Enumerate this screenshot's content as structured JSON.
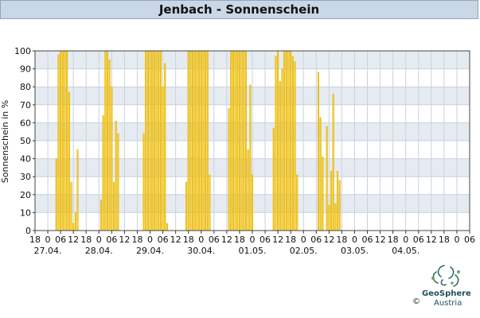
{
  "chart_data": {
    "type": "bar",
    "title": "Jenbach - Sonnenschein",
    "ylabel": "Sonnenschein in %",
    "ylim": [
      0,
      100
    ],
    "yticks": [
      0,
      10,
      20,
      30,
      40,
      50,
      60,
      70,
      80,
      90,
      100
    ],
    "x_hour_labels": [
      "18",
      "0",
      "06",
      "12",
      "18",
      "0",
      "06",
      "12",
      "18",
      "0",
      "06",
      "12",
      "18",
      "0",
      "06",
      "12",
      "18",
      "0",
      "06",
      "12",
      "18",
      "0",
      "06",
      "12",
      "18",
      "0",
      "06",
      "12",
      "18",
      "0",
      "06",
      "12",
      "18",
      "0",
      "06"
    ],
    "date_labels": [
      "27.04.",
      "28.04.",
      "29.04.",
      "30.04.",
      "01.05.",
      "02.05.",
      "03.05.",
      "04.05."
    ],
    "x_unit": "hours since 26.04. 18:00",
    "x_range": [
      0,
      204
    ],
    "grid": true,
    "colors": {
      "bar": "#f5cc1a",
      "bar_edge": "#e0a800",
      "band": "#e6ebf2",
      "grid": "#c8d2de"
    },
    "values": [
      [
        10,
        40
      ],
      [
        11,
        98
      ],
      [
        12,
        100
      ],
      [
        13,
        100
      ],
      [
        14,
        100
      ],
      [
        15,
        100
      ],
      [
        16,
        77
      ],
      [
        17,
        27
      ],
      [
        18,
        4
      ],
      [
        19,
        10
      ],
      [
        20,
        45
      ],
      [
        31,
        17
      ],
      [
        32,
        64
      ],
      [
        33,
        100
      ],
      [
        34,
        100
      ],
      [
        35,
        95
      ],
      [
        36,
        80
      ],
      [
        37,
        27
      ],
      [
        38,
        61
      ],
      [
        39,
        54
      ],
      [
        51,
        54
      ],
      [
        52,
        100
      ],
      [
        53,
        100
      ],
      [
        54,
        100
      ],
      [
        55,
        100
      ],
      [
        56,
        100
      ],
      [
        57,
        100
      ],
      [
        58,
        100
      ],
      [
        59,
        100
      ],
      [
        60,
        80
      ],
      [
        61,
        93
      ],
      [
        62,
        4
      ],
      [
        71,
        27
      ],
      [
        72,
        100
      ],
      [
        73,
        100
      ],
      [
        74,
        100
      ],
      [
        75,
        100
      ],
      [
        76,
        100
      ],
      [
        77,
        100
      ],
      [
        78,
        100
      ],
      [
        79,
        100
      ],
      [
        80,
        100
      ],
      [
        81,
        100
      ],
      [
        82,
        31
      ],
      [
        91,
        68
      ],
      [
        92,
        100
      ],
      [
        93,
        100
      ],
      [
        94,
        100
      ],
      [
        95,
        100
      ],
      [
        96,
        100
      ],
      [
        97,
        100
      ],
      [
        98,
        100
      ],
      [
        99,
        100
      ],
      [
        100,
        45
      ],
      [
        101,
        81
      ],
      [
        102,
        31
      ],
      [
        112,
        57
      ],
      [
        113,
        97
      ],
      [
        114,
        100
      ],
      [
        115,
        83
      ],
      [
        116,
        90
      ],
      [
        117,
        100
      ],
      [
        118,
        100
      ],
      [
        119,
        100
      ],
      [
        120,
        100
      ],
      [
        121,
        97
      ],
      [
        122,
        94
      ],
      [
        123,
        31
      ],
      [
        133,
        88
      ],
      [
        134,
        63
      ],
      [
        135,
        41
      ],
      [
        137,
        58
      ],
      [
        138,
        14
      ],
      [
        139,
        33
      ],
      [
        140,
        76
      ],
      [
        141,
        15
      ],
      [
        142,
        33
      ],
      [
        143,
        28
      ]
    ]
  },
  "logo": {
    "name": "GeoSphere",
    "sub": "Austria",
    "copyright": "©"
  }
}
